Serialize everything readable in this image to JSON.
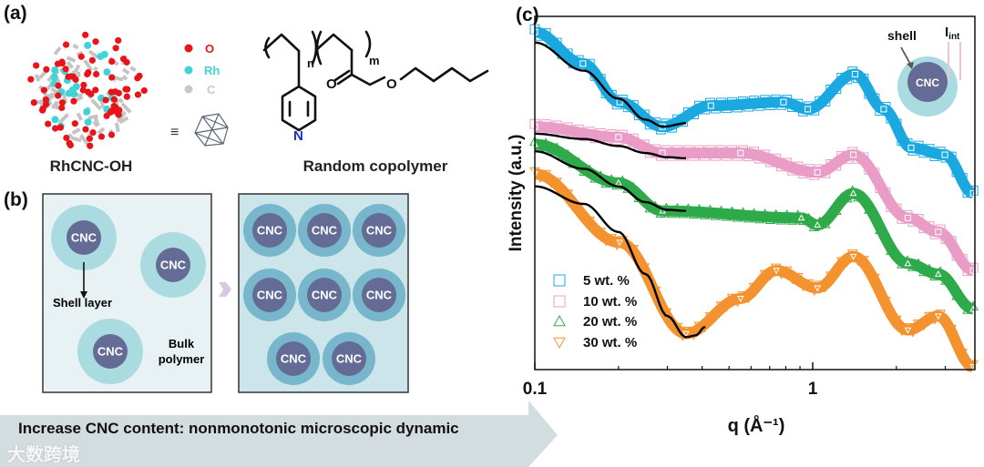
{
  "panel_a": {
    "label": "(a)",
    "molecule_caption": "RhCNC-OH",
    "legend": [
      {
        "symbol": "O",
        "color": "#e8141a"
      },
      {
        "symbol": "Rh",
        "color": "#3fd4d8"
      },
      {
        "symbol": "C",
        "color": "#c8c8c8"
      }
    ],
    "equivalence": "≡",
    "polymer_caption": "Random copolymer",
    "polymer_atoms": {
      "n": "n",
      "m": "m",
      "N": "N",
      "O1": "O",
      "O2": "O"
    }
  },
  "panel_b": {
    "label": "(b)",
    "core_label": "CNC",
    "shell_label": "Shell layer",
    "bulk_label_line1": "Bulk",
    "bulk_label_line2": "polymer",
    "arrow_text": "Increase CNC content: nonmonotonic microscopic dynamic",
    "colors": {
      "box1": "#e8f2f4",
      "box2": "#cce5ea",
      "shell1": "#a9dbe0",
      "shell2": "#78b6cb",
      "core": "#646c96",
      "arrow": "#d3dcdf"
    }
  },
  "panel_c": {
    "label": "(c)",
    "inset": {
      "shell": "shell",
      "core": "CNC",
      "i_int": "I",
      "i_int_sub": "int"
    }
  },
  "watermark": "大数跨境",
  "chart_data": {
    "type": "scatter",
    "title": "",
    "xlabel": "q (Å⁻¹)",
    "ylabel": "Intensity (a.u.)",
    "xscale": "log",
    "xlim": [
      0.1,
      3.8
    ],
    "ylim": [
      0,
      100
    ],
    "x_ticks": [
      {
        "value": 0.1,
        "label": "0.1"
      },
      {
        "value": 1,
        "label": "1"
      }
    ],
    "legend_position": "bottom-left",
    "series": [
      {
        "name": "5 wt. %",
        "marker": "square",
        "color": "#1ba8e0",
        "q": [
          0.1,
          0.149,
          0.202,
          0.288,
          0.43,
          0.785,
          0.96,
          1.42,
          1.8,
          2.26,
          2.99,
          3.78
        ],
        "y": [
          96,
          87,
          76,
          69,
          75,
          76,
          74,
          84,
          74,
          63,
          61,
          50
        ],
        "fit": {
          "q": [
            0.1,
            0.15,
            0.2,
            0.25,
            0.29,
            0.35
          ],
          "y": [
            93,
            85,
            77,
            71,
            69,
            70
          ]
        }
      },
      {
        "name": "10 wt. %",
        "marker": "square",
        "color": "#e89cc6",
        "q": [
          0.1,
          0.2,
          0.288,
          0.55,
          1.04,
          1.4,
          2.2,
          2.83,
          3.78
        ],
        "y": [
          69,
          66,
          61.5,
          61.5,
          56,
          61,
          43,
          39,
          28
        ],
        "fit": {
          "q": [
            0.1,
            0.15,
            0.2,
            0.25,
            0.3,
            0.35
          ],
          "y": [
            67,
            65.5,
            63.5,
            61.5,
            60.3,
            60
          ]
        }
      },
      {
        "name": "20 wt. %",
        "marker": "triangle-up",
        "color": "#2eaa4a",
        "q": [
          0.1,
          0.2,
          0.288,
          0.91,
          1.04,
          1.4,
          2.2,
          2.83,
          3.78
        ],
        "y": [
          64,
          53,
          45,
          43,
          41,
          50,
          30,
          27,
          17
        ],
        "fit": {
          "q": [
            0.1,
            0.15,
            0.2,
            0.25,
            0.3,
            0.35
          ],
          "y": [
            62,
            57,
            52,
            47.5,
            45.3,
            45
          ]
        }
      },
      {
        "name": "30 wt. %",
        "marker": "triangle-down",
        "color": "#f3922f",
        "q": [
          0.1,
          0.202,
          0.35,
          0.55,
          0.74,
          1.04,
          1.4,
          2.2,
          2.83,
          3.78
        ],
        "y": [
          55.5,
          36,
          10,
          20,
          28,
          23,
          32,
          11,
          15,
          0.5
        ],
        "fit": {
          "q": [
            0.1,
            0.15,
            0.2,
            0.25,
            0.3,
            0.35,
            0.38,
            0.41
          ],
          "y": [
            52,
            47,
            39,
            27,
            15,
            9,
            9.5,
            12
          ]
        }
      }
    ]
  }
}
